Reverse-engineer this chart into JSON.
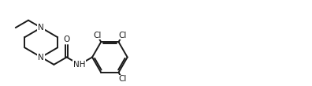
{
  "bg_color": "#ffffff",
  "line_color": "#1a1a1a",
  "line_width": 1.4,
  "font_size": 7.5,
  "font_family": "DejaVu Sans",
  "figsize": [
    3.96,
    1.09
  ],
  "dpi": 100,
  "xlim": [
    0,
    11
  ],
  "ylim": [
    0,
    3
  ]
}
